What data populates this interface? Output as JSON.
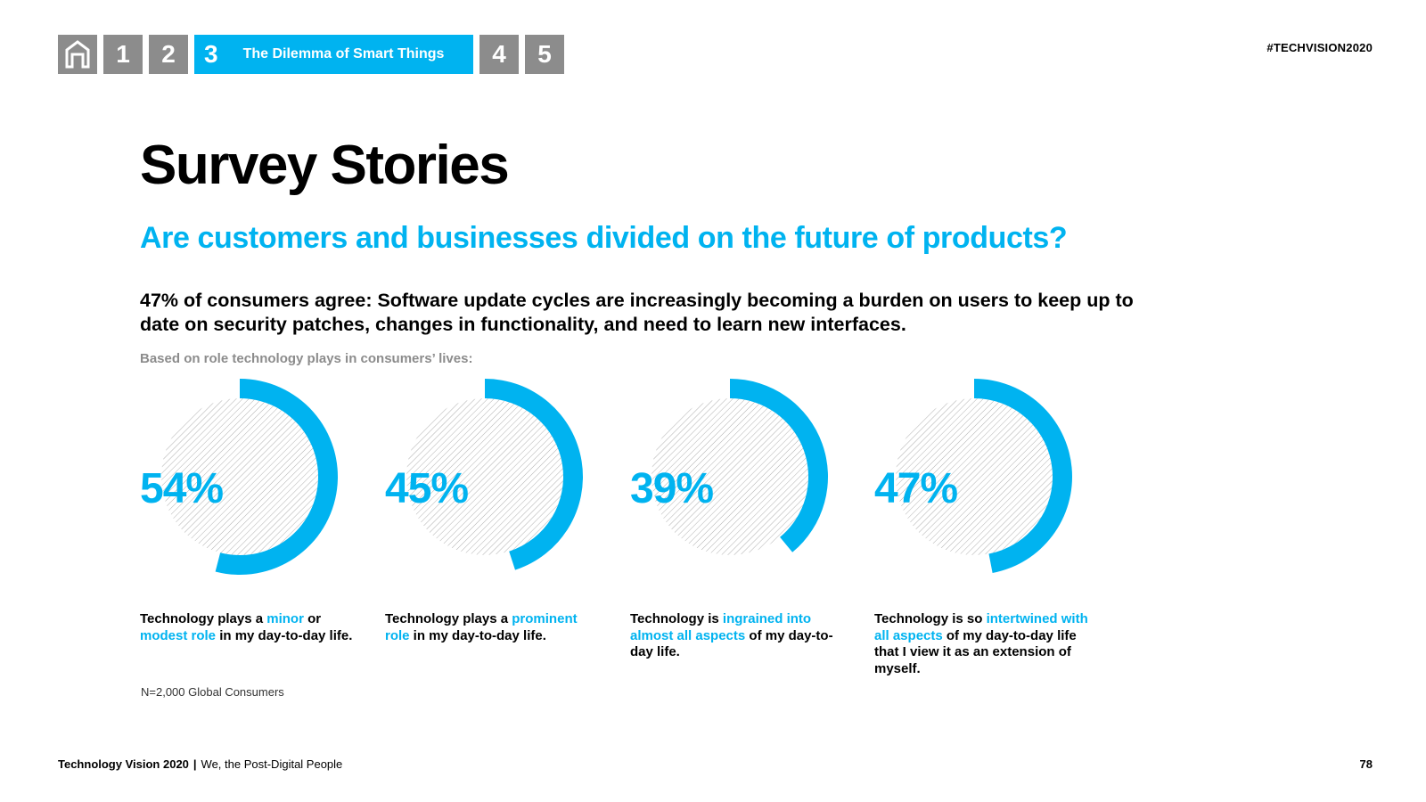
{
  "nav": {
    "items": [
      "1",
      "2",
      "3",
      "4",
      "5"
    ],
    "active_number": "3",
    "active_title": "The Dilemma of Smart Things",
    "home_icon": "home-icon"
  },
  "hashtag": "#TECHVISION2020",
  "page_title": "Survey Stories",
  "subtitle": "Are customers and businesses divided on the future of products?",
  "headline": "47% of consumers agree: Software update cycles are increasingly becoming a burden on users to keep up to date on security patches, changes in functionality, and need to learn new interfaces.",
  "basis_note": "Based on role technology plays in consumers’ lives:",
  "colors": {
    "accent": "#00b3f0",
    "nav_gray": "#8c8c8c",
    "hatch": "#9a9a9a"
  },
  "chart_data": {
    "type": "pie",
    "variant": "donut",
    "unit": "%",
    "items": [
      {
        "label": "54%",
        "value": 54,
        "caption_parts": [
          {
            "text": "Technology plays a ",
            "highlight": false
          },
          {
            "text": "minor",
            "highlight": true
          },
          {
            "text": " or ",
            "highlight": false
          },
          {
            "text": "modest role",
            "highlight": true
          },
          {
            "text": " in my day-to-day life.",
            "highlight": false
          }
        ]
      },
      {
        "label": "45%",
        "value": 45,
        "caption_parts": [
          {
            "text": "Technology plays a ",
            "highlight": false
          },
          {
            "text": "prominent role",
            "highlight": true
          },
          {
            "text": " in my day-to-day life.",
            "highlight": false
          }
        ]
      },
      {
        "label": "39%",
        "value": 39,
        "caption_parts": [
          {
            "text": "Technology is ",
            "highlight": false
          },
          {
            "text": "ingrained into almost all aspects",
            "highlight": true
          },
          {
            "text": " of my day-to-day life.",
            "highlight": false
          }
        ]
      },
      {
        "label": "47%",
        "value": 47,
        "caption_parts": [
          {
            "text": "Technology is so ",
            "highlight": false
          },
          {
            "text": "intertwined with all aspects",
            "highlight": true
          },
          {
            "text": " of my day-to-day life that I view it as an extension of myself.",
            "highlight": false
          }
        ]
      }
    ]
  },
  "sample_note": "N=2,000 Global Consumers",
  "footer": {
    "report": "Technology Vision 2020",
    "separator": "|",
    "tagline": "We, the Post-Digital People"
  },
  "page_number": "78"
}
